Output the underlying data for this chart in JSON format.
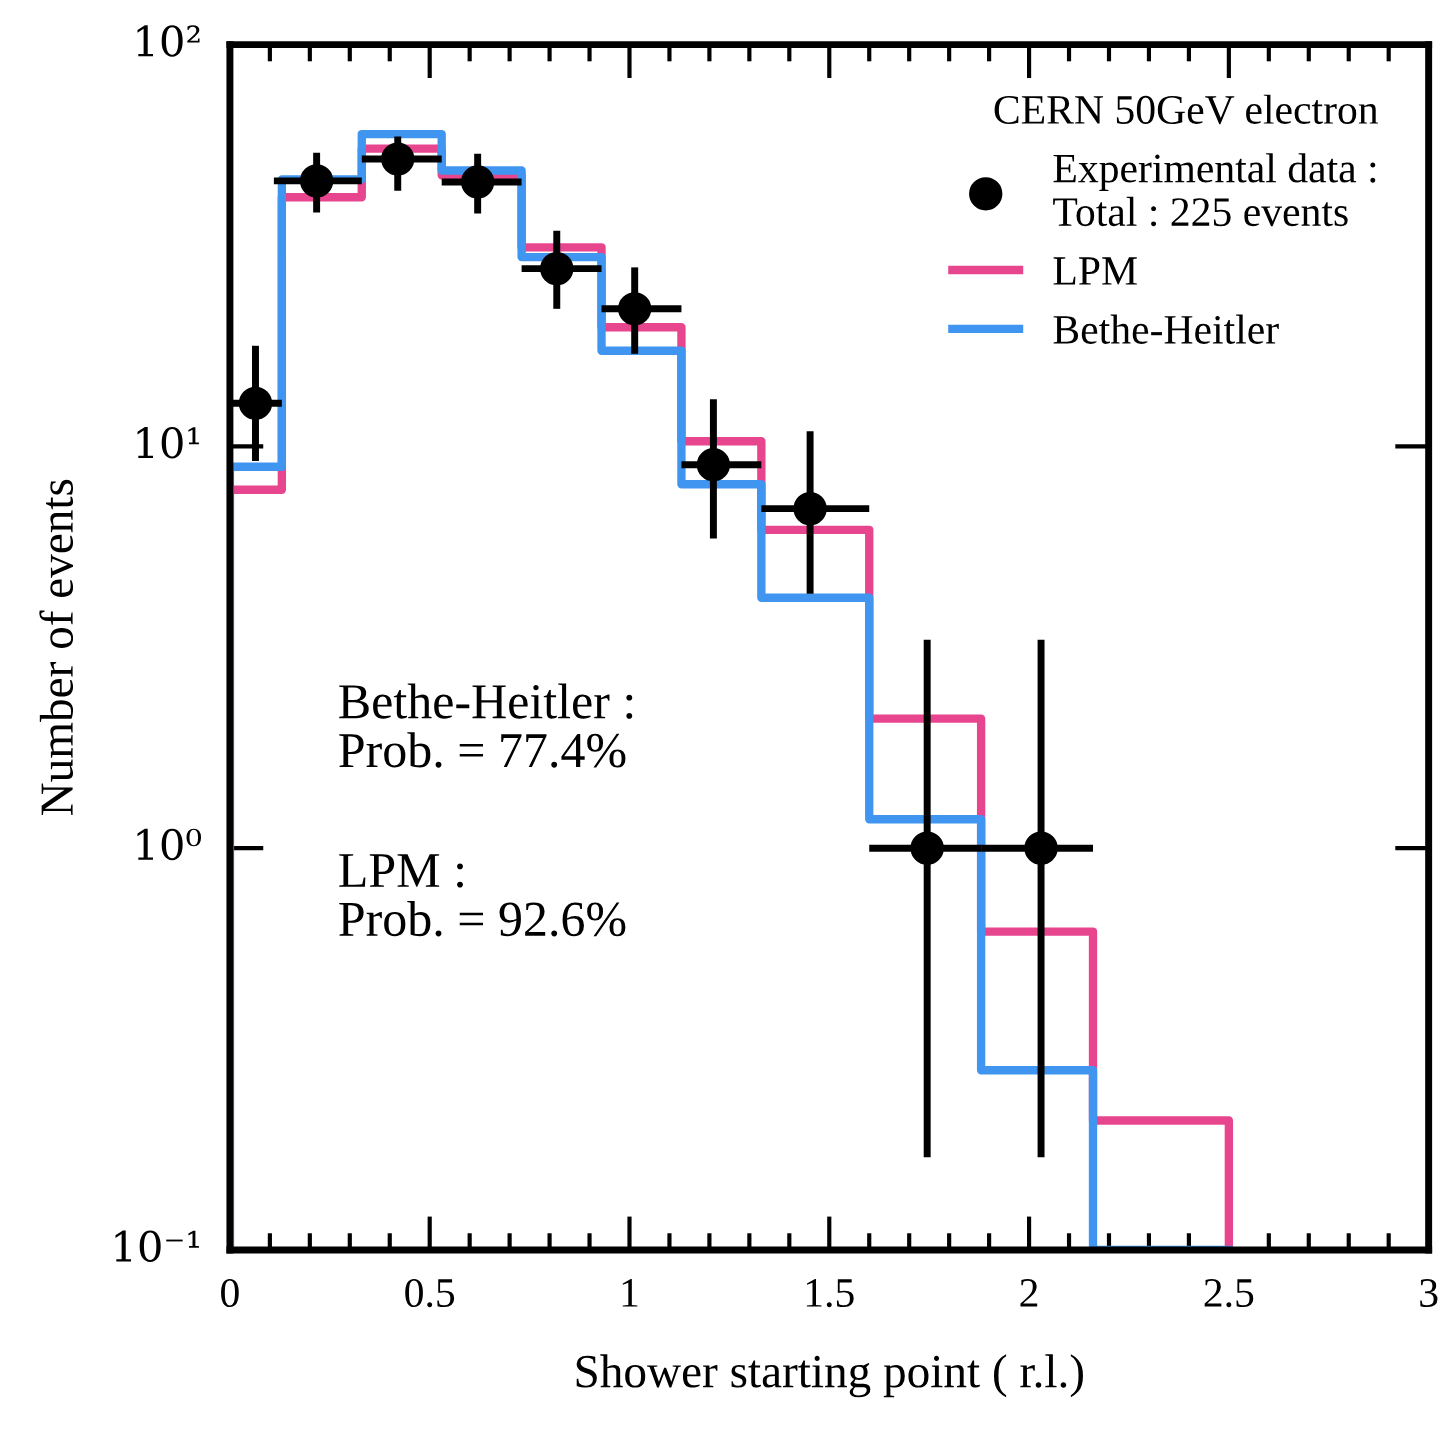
{
  "chart_data": {
    "type": "histogram",
    "xlabel": "Shower starting point ( r.l.)",
    "ylabel": "Number of events",
    "legend_title": "CERN 50GeV electron",
    "bins": [
      0,
      0.13,
      0.33,
      0.53,
      0.73,
      0.93,
      1.13,
      1.33,
      1.6,
      1.88,
      2.16,
      2.5
    ],
    "series": [
      {
        "name": "Experimental data :\nTotal : 225 events",
        "type": "scatter",
        "color": "#000000",
        "marker": "circle",
        "x": [
          0.064,
          0.217,
          0.42,
          0.62,
          0.818,
          1.013,
          1.21,
          1.452,
          1.745,
          2.03
        ],
        "values": [
          12.8,
          45.8,
          51.9,
          45.5,
          27.7,
          22,
          9,
          7,
          1,
          1
        ],
        "errors": [
          [
            9.2,
            17.8
          ],
          [
            38.2,
            53.8
          ],
          [
            43.3,
            59.1
          ],
          [
            38,
            53.5
          ],
          [
            22,
            34.4
          ],
          [
            17,
            27.9
          ],
          [
            5.9,
            13.1
          ],
          [
            4.3,
            10.9
          ],
          [
            0.17,
            3.3
          ],
          [
            0.17,
            3.3
          ]
        ],
        "xerrors": [
          [
            0,
            0.13
          ],
          [
            0.11,
            0.33
          ],
          [
            0.33,
            0.53
          ],
          [
            0.53,
            0.73
          ],
          [
            0.73,
            0.93
          ],
          [
            0.93,
            1.13
          ],
          [
            1.13,
            1.33
          ],
          [
            1.33,
            1.6
          ],
          [
            1.6,
            1.88
          ],
          [
            1.88,
            2.16
          ]
        ]
      },
      {
        "name": "LPM",
        "type": "histogram",
        "color": "#e8458f",
        "values": [
          7.8,
          41.7,
          55.1,
          47.3,
          31.3,
          19.8,
          10.3,
          6.2,
          2.1,
          0.62,
          0.21
        ]
      },
      {
        "name": "Bethe-Heitler",
        "type": "histogram",
        "color": "#3f95f0",
        "values": [
          8.9,
          46.2,
          59.9,
          48.6,
          29.6,
          17.3,
          8.05,
          4.2,
          1.18,
          0.28,
          null
        ]
      }
    ],
    "log": "y",
    "xlim": [
      0,
      3
    ],
    "ylim": [
      0.1,
      100
    ],
    "xticks": [
      0,
      0.5,
      1,
      1.5,
      2,
      2.5,
      3
    ],
    "yticks": [
      {
        "value": 0.1,
        "label": "10⁻¹"
      },
      {
        "value": 1,
        "label": "10⁰"
      },
      {
        "value": 10,
        "label": "10¹"
      },
      {
        "value": 100,
        "label": "10²"
      }
    ],
    "grid": false,
    "legend": "top right",
    "annotations": [
      "Bethe-Heitler :\nProb. = 77.4%",
      "LPM :\nProb. = 92.6%"
    ]
  }
}
